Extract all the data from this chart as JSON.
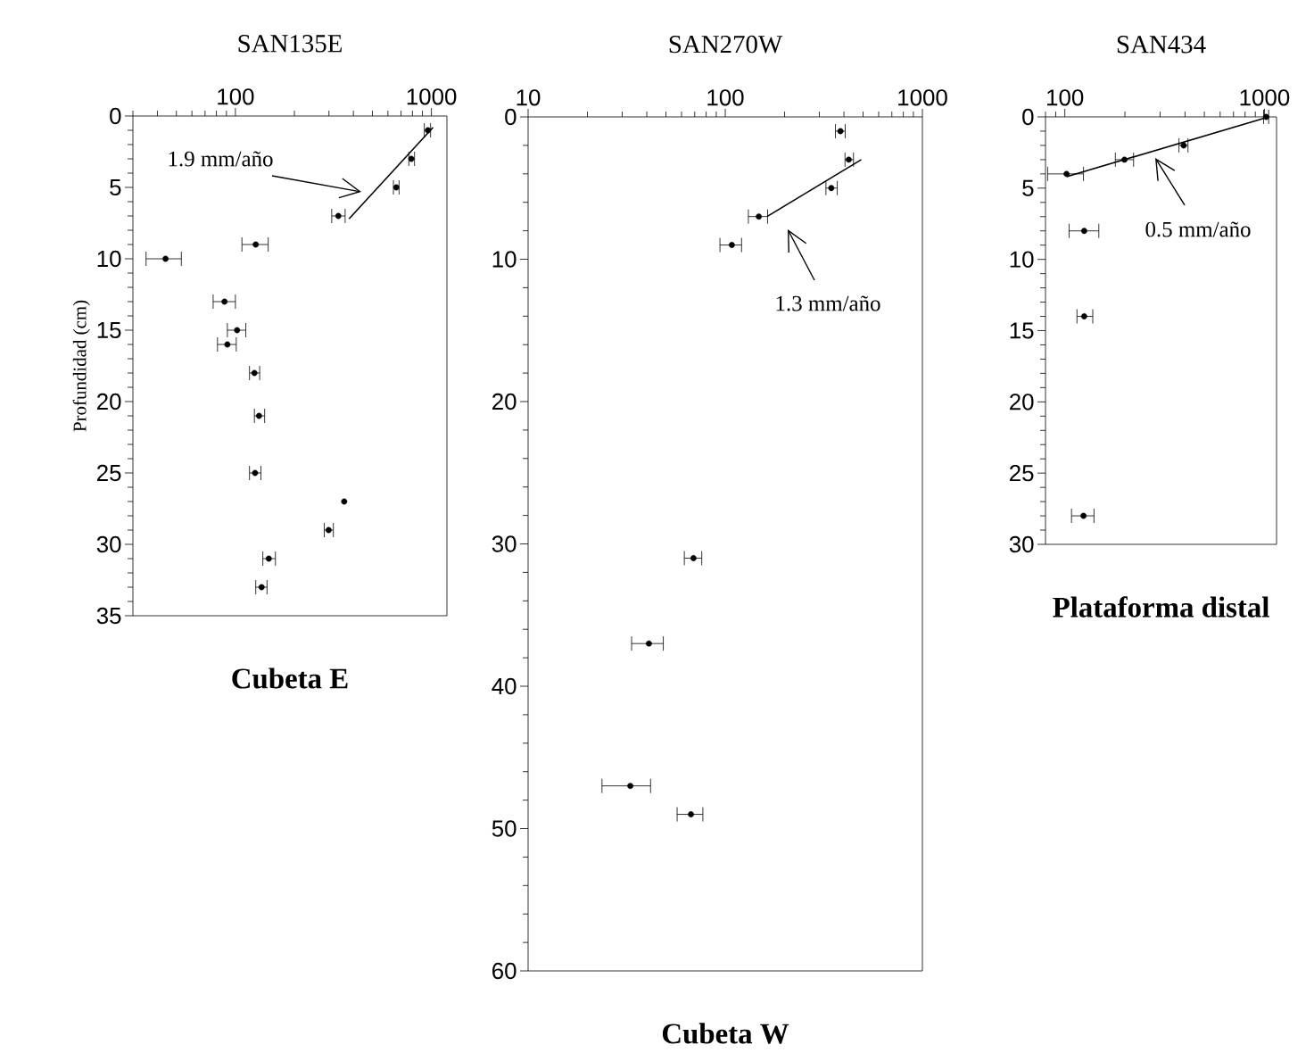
{
  "chart_data": [
    {
      "type": "scatter",
      "title": "SAN135E",
      "subtitle": "Cubeta E",
      "ylabel": "Profundidad (cm)",
      "log": "x",
      "xlim": [
        30,
        1200
      ],
      "xticks": [
        100,
        1000
      ],
      "ylim": [
        35,
        0
      ],
      "yticks": [
        0,
        5,
        10,
        15,
        20,
        25,
        30,
        35
      ],
      "series": [
        {
          "type": "scatter",
          "marker": "circle",
          "color": "#000000",
          "x": [
            960,
            790,
            662,
            335,
            127,
            44,
            88,
            102,
            91,
            125,
            132,
            126,
            359,
            299,
            148,
            136
          ],
          "values": [
            1,
            3,
            5,
            7,
            9,
            10,
            13,
            15,
            16,
            18,
            21,
            25,
            27,
            29,
            31,
            33
          ],
          "xerrors": [
            [
              920,
              990
            ],
            [
              767,
              820
            ],
            [
              640,
              684
            ],
            [
              310,
              363
            ],
            [
              108,
              147
            ],
            [
              35,
              53
            ],
            [
              77,
              100
            ],
            [
              91,
              113
            ],
            [
              81,
              101
            ],
            [
              118,
              133
            ],
            [
              125,
              141
            ],
            [
              118,
              135
            ],
            null,
            [
              284,
              316
            ],
            [
              138,
              160
            ],
            [
              127,
              145
            ]
          ]
        },
        {
          "type": "line",
          "color": "#000000",
          "x": [
            380,
            1020
          ],
          "values": [
            7.2,
            0.8
          ]
        }
      ],
      "annotations": [
        "1.9 mm/año"
      ]
    },
    {
      "type": "scatter",
      "title": "SAN270W",
      "subtitle": "Cubeta W",
      "log": "x",
      "xlim": [
        10,
        1000
      ],
      "xticks": [
        10,
        100,
        1000
      ],
      "ylim": [
        60,
        0
      ],
      "yticks": [
        0,
        10,
        20,
        30,
        40,
        50,
        60
      ],
      "series": [
        {
          "type": "scatter",
          "marker": "circle",
          "color": "#000000",
          "x": [
            384,
            423,
            345,
            148,
            108,
            69,
            41,
            33,
            67
          ],
          "values": [
            1,
            3,
            5,
            7,
            9,
            31,
            37,
            47,
            49
          ],
          "xerrors": [
            [
              362,
              406
            ],
            [
              405,
              447
            ],
            [
              324,
              370
            ],
            [
              131,
              164
            ],
            [
              94,
              121
            ],
            [
              62,
              76
            ],
            [
              33.5,
              48.5
            ],
            [
              23.7,
              41.8
            ],
            [
              57,
              77
            ]
          ]
        },
        {
          "type": "line",
          "color": "#000000",
          "x": [
            163,
            490
          ],
          "values": [
            7,
            3
          ]
        }
      ],
      "annotations": [
        "1.3 mm/año"
      ]
    },
    {
      "type": "scatter",
      "title": "SAN434",
      "subtitle": "Plataforma distal",
      "log": "x",
      "xlim": [
        80,
        1150
      ],
      "xticks": [
        100,
        1000
      ],
      "ylim": [
        30,
        0
      ],
      "yticks": [
        0,
        5,
        10,
        15,
        20,
        25,
        30
      ],
      "series": [
        {
          "type": "scatter",
          "marker": "circle",
          "color": "#000000",
          "x": [
            1020,
            394,
            199,
            102,
            125,
            125,
            124
          ],
          "values": [
            0,
            2,
            3,
            4,
            8,
            14,
            28
          ],
          "xerrors": [
            [
              990,
              1050
            ],
            [
              373,
              414
            ],
            [
              179,
              221
            ],
            [
              82,
              124
            ],
            [
              105,
              148
            ],
            [
              115,
              138
            ],
            [
              108,
              140
            ]
          ]
        },
        {
          "type": "line",
          "color": "#000000",
          "x": [
            102,
            1050
          ],
          "values": [
            4.2,
            0
          ]
        }
      ],
      "annotations": [
        "0.5 mm/año"
      ]
    }
  ]
}
